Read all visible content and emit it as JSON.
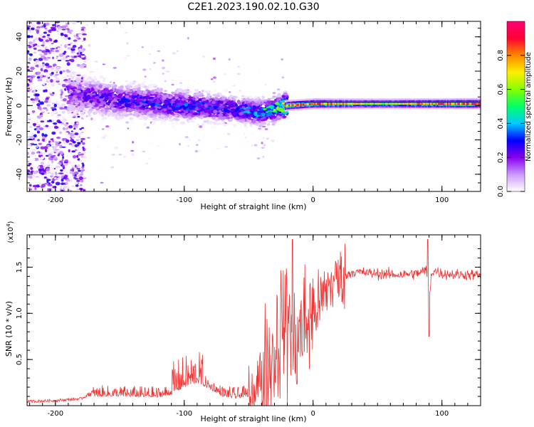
{
  "title": "C2E1.2023.190.02.10.G30",
  "chart_data": [
    {
      "type": "heatmap",
      "xlabel": "Height of straight line (km)",
      "ylabel": "Frequency (Hz)",
      "xlim": [
        -222,
        130
      ],
      "ylim": [
        -50,
        49
      ],
      "x_ticks": [
        -200,
        -100,
        0,
        100
      ],
      "y_ticks": [
        -40,
        -20,
        0,
        20,
        40
      ],
      "colorbar": {
        "label": "Normalized spectral amplitude",
        "range": [
          0,
          1
        ],
        "ticks": [
          0.0,
          0.2,
          0.4,
          0.6,
          0.8
        ],
        "colors": [
          "#ffffff",
          "#cc99ff",
          "#8800ee",
          "#0000ff",
          "#00ccff",
          "#00ff66",
          "#88ff00",
          "#ffee00",
          "#ff8800",
          "#ff0033",
          "#ff0077"
        ]
      },
      "ridge": {
        "x": [
          -190,
          -150,
          -100,
          -60,
          -45,
          -35,
          -25,
          -20,
          0,
          50,
          130
        ],
        "y": [
          7,
          3,
          0,
          -2,
          -4,
          -3,
          -1,
          0,
          1,
          1,
          1
        ],
        "amplitude": [
          0.2,
          0.25,
          0.3,
          0.3,
          0.35,
          0.45,
          0.6,
          0.85,
          0.8,
          0.6,
          0.9
        ]
      },
      "band_center_line_y": 2
    },
    {
      "type": "line",
      "xlabel": "Height of straight line (km)",
      "ylabel": "SNR (10 * v/v)",
      "y_multiplier": "(x10",
      "y_multiplier_exp": "4",
      "y_multiplier_close": ")",
      "xlim": [
        -222,
        130
      ],
      "ylim": [
        0,
        1.85
      ],
      "x_ticks": [
        -200,
        -100,
        0,
        100
      ],
      "y_ticks": [
        0.5,
        1.0,
        1.5
      ],
      "series": [
        {
          "color": "#ee3333",
          "x": [
            -222,
            -200,
            -180,
            -175,
            -150,
            -120,
            -110,
            -100,
            -90,
            -80,
            -70,
            -60,
            -50,
            -45,
            -40,
            -35,
            -30,
            -25,
            -22,
            -20,
            -18,
            -15,
            -10,
            -5,
            0,
            5,
            10,
            15,
            20,
            25,
            30,
            40,
            50,
            60,
            70,
            80,
            85,
            88,
            90,
            92,
            95,
            100,
            110,
            120,
            130
          ],
          "y": [
            0.03,
            0.04,
            0.06,
            0.1,
            0.1,
            0.09,
            0.12,
            0.2,
            0.25,
            0.18,
            0.1,
            0.08,
            0.1,
            0.22,
            0.3,
            0.45,
            0.55,
            0.85,
            0.95,
            0.8,
            1.05,
            0.6,
            0.8,
            0.9,
            1.0,
            1.1,
            1.25,
            1.35,
            1.38,
            1.4,
            1.45,
            1.44,
            1.43,
            1.42,
            1.42,
            1.43,
            1.45,
            1.48,
            1.15,
            1.45,
            1.46,
            1.43,
            1.42,
            1.42,
            1.41
          ]
        }
      ],
      "spikes": [
        {
          "x": -16,
          "y": 1.8
        },
        {
          "x": 89,
          "y": 1.8
        },
        {
          "x": 90,
          "y": 0.75
        }
      ]
    }
  ]
}
